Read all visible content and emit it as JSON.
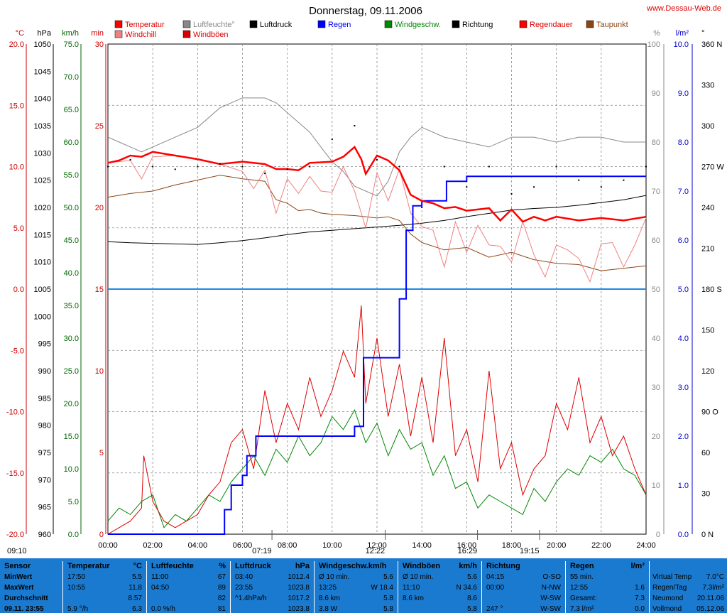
{
  "title": "Donnerstag, 09.11.2006",
  "site": "www.Dessau-Web.de",
  "axes": {
    "celsius": {
      "unit": "°C",
      "ticks": [
        "20.0",
        "15.0",
        "10.0",
        "5.0",
        "0.0",
        "-5.0",
        "-10.0",
        "-15.0",
        "-20.0"
      ],
      "range": [
        -20,
        20
      ],
      "color": "#cc0000"
    },
    "hpa": {
      "unit": "hPa",
      "ticks": [
        "1050",
        "1045",
        "1040",
        "1035",
        "1030",
        "1025",
        "1020",
        "1015",
        "1010",
        "1005",
        "1000",
        "995",
        "990",
        "985",
        "980",
        "975",
        "970",
        "965",
        "960"
      ],
      "range": [
        960,
        1050
      ],
      "color": "#000000"
    },
    "kmh": {
      "unit": "km/h",
      "ticks": [
        "75.0",
        "70.0",
        "65.0",
        "60.0",
        "55.0",
        "50.0",
        "45.0",
        "40.0",
        "35.0",
        "30.0",
        "25.0",
        "20.0",
        "15.0",
        "10.0",
        "5.0",
        "0.0"
      ],
      "range": [
        0,
        75
      ],
      "color": "#006600"
    },
    "min": {
      "unit": "min",
      "ticks": [
        "30",
        "25",
        "20",
        "15",
        "10",
        "5",
        "0"
      ],
      "range": [
        0,
        30
      ],
      "color": "#cc0000"
    },
    "percent": {
      "unit": "%",
      "ticks": [
        "100",
        "90",
        "80",
        "70",
        "60",
        "50",
        "40",
        "30",
        "20",
        "10",
        "0"
      ],
      "range": [
        0,
        100
      ],
      "color": "#888888"
    },
    "lm2": {
      "unit": "l/m²",
      "ticks": [
        "10.0",
        "9.0",
        "8.0",
        "7.0",
        "6.0",
        "5.0",
        "4.0",
        "3.0",
        "2.0",
        "1.0",
        "0.0"
      ],
      "range": [
        0,
        10
      ],
      "color": "#0000cc"
    },
    "deg": {
      "unit": "°",
      "ticks": [
        "360 N",
        "330",
        "300",
        "270 W",
        "240",
        "210",
        "180 S",
        "150",
        "120",
        "90 O",
        "60",
        "30",
        "0 N"
      ],
      "range": [
        0,
        360
      ],
      "color": "#000000"
    },
    "time": {
      "ticks": [
        "00:00",
        "02:00",
        "04:00",
        "06:00",
        "08:00",
        "10:00",
        "12:00",
        "14:00",
        "16:00",
        "18:00",
        "20:00",
        "22:00",
        "24:00"
      ],
      "range": [
        0,
        24
      ]
    }
  },
  "legend": [
    {
      "label": "Temperatur",
      "color": "#ff0000"
    },
    {
      "label": "Windchill",
      "color": "#f08080"
    },
    {
      "label": "Luftfeuchte°",
      "color": "#888888"
    },
    {
      "label": "Windböen",
      "color": "#dd0000"
    },
    {
      "label": "Luftdruck",
      "color": "#000000"
    },
    {
      "label": "Regen",
      "color": "#0000ff"
    },
    {
      "label": "Windgeschw.",
      "color": "#008800"
    },
    {
      "label": "Richtung",
      "color": "#000000"
    },
    {
      "label": "Regendauer",
      "color": "#ff0000"
    },
    {
      "label": "Taupunkt",
      "color": "#8b4513"
    }
  ],
  "sun": {
    "sunrise": "07:19",
    "sunset": "16:29",
    "moon1": "12:22",
    "moon2": "19:15",
    "start": "09:10"
  },
  "chart_data": {
    "type": "line",
    "x_unit": "hour",
    "xlim": [
      0,
      24
    ],
    "reference_line_mm": 5.0,
    "series": [
      {
        "name": "Temperatur",
        "axis": "celsius",
        "x": [
          0,
          0.5,
          1,
          1.5,
          2,
          3,
          4,
          5,
          6,
          7,
          7.5,
          8,
          8.5,
          9,
          10,
          10.5,
          11,
          11.3,
          11.5,
          12,
          12.5,
          13,
          13.5,
          14,
          14.5,
          15,
          15.5,
          16,
          16.5,
          17,
          17.5,
          18,
          18.5,
          19,
          19.5,
          20,
          21,
          22,
          23,
          24
        ],
        "y": [
          10.3,
          10.5,
          10.9,
          10.8,
          11.2,
          10.9,
          10.6,
          10.2,
          10.4,
          10.2,
          9.8,
          9.8,
          9.7,
          10.3,
          10.4,
          10.8,
          11.6,
          10.6,
          9.4,
          10.9,
          10.5,
          9.7,
          7.7,
          7.2,
          7.0,
          6.6,
          6.7,
          6.4,
          6.5,
          6.6,
          5.6,
          6.5,
          5.5,
          5.9,
          5.6,
          5.9,
          5.6,
          5.8,
          5.6,
          5.9
        ]
      },
      {
        "name": "Luftfeuchte°",
        "axis": "percent",
        "x": [
          0,
          0.5,
          1,
          1.5,
          2,
          3,
          4,
          5,
          5.5,
          6,
          6.5,
          7,
          7.5,
          8,
          8.5,
          9,
          9.5,
          10,
          10.5,
          11,
          11.5,
          12,
          12.5,
          13,
          13.5,
          14,
          14.5,
          15,
          16,
          17,
          18,
          19,
          20,
          21,
          22,
          23,
          24
        ],
        "y": [
          81,
          80,
          79,
          78,
          79,
          81,
          83,
          87,
          88,
          89,
          89,
          89,
          88,
          86,
          84,
          82,
          79,
          76,
          74,
          71,
          70,
          69,
          72,
          78,
          81,
          83,
          82,
          81,
          80,
          79,
          81,
          81,
          80,
          81,
          81,
          80,
          80
        ]
      },
      {
        "name": "Luftdruck",
        "axis": "hpa",
        "x": [
          0,
          1,
          2,
          3,
          4,
          5,
          6,
          7,
          8,
          9,
          10,
          11,
          12,
          13,
          14,
          15,
          16,
          17,
          18,
          19,
          20,
          21,
          22,
          23,
          24
        ],
        "y": [
          1013.7,
          1013.5,
          1013.4,
          1013.3,
          1013.2,
          1013.5,
          1013.9,
          1014.4,
          1015.0,
          1015.5,
          1015.8,
          1016.1,
          1016.4,
          1016.7,
          1017.1,
          1017.6,
          1018.3,
          1018.9,
          1019.5,
          1019.8,
          1020.0,
          1020.4,
          1020.9,
          1021.4,
          1022.2
        ]
      },
      {
        "name": "Taupunkt",
        "axis": "celsius",
        "x": [
          0,
          1,
          2,
          3,
          4,
          5,
          6,
          7,
          7.5,
          8,
          8.5,
          9,
          9.5,
          10,
          11,
          12,
          12.5,
          13,
          13.5,
          14,
          15,
          16,
          17,
          18,
          19,
          20,
          21,
          22,
          23,
          24
        ],
        "y": [
          7.5,
          7.8,
          8.0,
          8.5,
          8.9,
          9.3,
          9.0,
          8.8,
          7.3,
          7.0,
          6.4,
          6.5,
          6.2,
          6.1,
          6.0,
          5.8,
          5.9,
          5.6,
          4.5,
          3.8,
          3.2,
          3.4,
          2.6,
          3.0,
          2.4,
          2.1,
          2.0,
          1.5,
          1.7,
          1.9
        ]
      },
      {
        "name": "Regen",
        "axis": "lm2",
        "step": true,
        "x": [
          0,
          4.5,
          5.2,
          5.5,
          6.0,
          6.2,
          6.6,
          7.0,
          8.0,
          9.0,
          10.0,
          11.0,
          11.4,
          12.0,
          13.0,
          13.3,
          13.6,
          14.0,
          15.0,
          15.1,
          16,
          17,
          18,
          19,
          20,
          21,
          22,
          23,
          24
        ],
        "y": [
          0,
          0,
          0.5,
          1.0,
          1.2,
          1.6,
          2.0,
          2.0,
          2.0,
          2.0,
          2.0,
          2.2,
          3.6,
          3.6,
          4.8,
          6.2,
          6.7,
          6.8,
          6.8,
          7.2,
          7.3,
          7.3,
          7.3,
          7.3,
          7.3,
          7.3,
          7.3,
          7.3,
          7.3
        ]
      },
      {
        "name": "Windchill",
        "axis": "celsius",
        "x": [
          0,
          1,
          1.5,
          2,
          3,
          4,
          5,
          6,
          6.5,
          7,
          7.5,
          8,
          8.5,
          9,
          9.5,
          10,
          10.5,
          11,
          11.5,
          12,
          12.5,
          13,
          13.5,
          14,
          14.5,
          15,
          15.5,
          16,
          16.5,
          17,
          17.5,
          18,
          18.5,
          19,
          19.5,
          20,
          20.5,
          21,
          21.5,
          22,
          22.5,
          23,
          23.5,
          24
        ],
        "y": [
          10.3,
          10.5,
          9.0,
          10.8,
          10.9,
          10.6,
          10.2,
          9.6,
          8.2,
          9.7,
          6.2,
          9.0,
          7.8,
          9.2,
          8.0,
          7.9,
          10.0,
          8.0,
          5.0,
          9.5,
          7.2,
          9.8,
          6.2,
          5.1,
          4.8,
          1.8,
          5.5,
          3.0,
          5.2,
          3.6,
          3.5,
          2.2,
          5.5,
          2.8,
          1.0,
          3.6,
          3.2,
          2.5,
          0.6,
          3.7,
          3.8,
          1.8,
          3.6,
          5.8
        ]
      },
      {
        "name": "Windgeschw.",
        "axis": "kmh",
        "x": [
          0,
          0.5,
          1,
          1.5,
          2,
          2.5,
          3,
          3.5,
          4,
          4.5,
          5,
          5.5,
          6,
          6.5,
          7,
          7.5,
          8,
          8.5,
          9,
          9.5,
          10,
          10.5,
          11,
          11.5,
          12,
          12.5,
          13,
          13.5,
          14,
          14.5,
          15,
          15.5,
          16,
          16.5,
          17,
          17.5,
          18,
          18.5,
          19,
          19.5,
          20,
          20.5,
          21,
          21.5,
          22,
          22.5,
          23,
          23.5,
          24
        ],
        "y": [
          2,
          4,
          3,
          5,
          6,
          1,
          3,
          2,
          4,
          6,
          5,
          8,
          10,
          12,
          9,
          13,
          11,
          15,
          12,
          14,
          18,
          16,
          19,
          14,
          17,
          12,
          16,
          13,
          14,
          9,
          12,
          7,
          8,
          4,
          6,
          5,
          4,
          3,
          7,
          5,
          8,
          10,
          9,
          12,
          11,
          13,
          10,
          9,
          6
        ]
      },
      {
        "name": "Windböen",
        "axis": "kmh",
        "x": [
          0,
          0.5,
          1,
          1.5,
          1.6,
          2,
          2.5,
          3,
          3.5,
          4,
          4.5,
          5,
          5.5,
          6,
          6.5,
          7,
          7.5,
          8,
          8.5,
          9,
          9.5,
          10,
          10.5,
          11,
          11.3,
          11.5,
          12,
          12.5,
          13,
          13.5,
          14,
          14.5,
          15,
          15.5,
          16,
          16.5,
          17,
          17.5,
          18,
          18.5,
          19,
          19.5,
          20,
          20.5,
          21,
          21.5,
          22,
          22.5,
          23,
          23.5,
          24
        ],
        "y": [
          0,
          1,
          2,
          4,
          12,
          5,
          2,
          1,
          2,
          3,
          6,
          8,
          14,
          16,
          10,
          22,
          14,
          20,
          16,
          24,
          18,
          22,
          28,
          24,
          35,
          20,
          30,
          18,
          26,
          15,
          24,
          14,
          30,
          12,
          16,
          8,
          25,
          10,
          14,
          6,
          10,
          12,
          20,
          16,
          24,
          14,
          18,
          12,
          15,
          10,
          6
        ]
      },
      {
        "name": "Richtung",
        "axis": "deg",
        "x": [
          0,
          1,
          2,
          3,
          4,
          5,
          6,
          7,
          8,
          9,
          10,
          11,
          12,
          13,
          14,
          15,
          16,
          17,
          18,
          19,
          20,
          21,
          22,
          23,
          24
        ],
        "y": [
          270,
          275,
          270,
          268,
          270,
          272,
          270,
          265,
          268,
          270,
          290,
          300,
          275,
          270,
          240,
          270,
          255,
          270,
          250,
          255,
          270,
          260,
          255,
          260,
          270
        ]
      }
    ]
  },
  "table": {
    "columns": [
      {
        "head_l": "Sensor",
        "head_r": "",
        "rows": [
          [
            "MinWert",
            ""
          ],
          [
            "MaxWert",
            ""
          ],
          [
            "Durchschnitt",
            ""
          ],
          [
            "09.11. 23:55",
            ""
          ]
        ]
      },
      {
        "head_l": "Temperatur",
        "head_r": "°C",
        "rows": [
          [
            "17:50",
            "5.5"
          ],
          [
            "10:55",
            "11.8"
          ],
          [
            "",
            "8.57"
          ],
          [
            "5.9 °/h",
            "6.3"
          ]
        ]
      },
      {
        "head_l": "Luftfeuchte",
        "head_r": "%",
        "rows": [
          [
            "11:00",
            "67"
          ],
          [
            "04:50",
            "89"
          ],
          [
            "",
            "82"
          ],
          [
            "0.0 %/h",
            "81"
          ]
        ]
      },
      {
        "head_l": "Luftdruck",
        "head_r": "hPa",
        "rows": [
          [
            "03:40",
            "1012.4"
          ],
          [
            "23:55",
            "1023.8"
          ],
          [
            "^1.4hPa/h",
            "1017.2"
          ],
          [
            "",
            "1023.8"
          ]
        ]
      },
      {
        "head_l": "Windgeschw.km/h",
        "head_r": "",
        "rows": [
          [
            "Ø 10 min.",
            "5.6"
          ],
          [
            "13:25",
            "W 18.4"
          ],
          [
            "8.6 km",
            "5.8"
          ],
          [
            "3.8 W",
            "5.8"
          ]
        ]
      },
      {
        "head_l": "Windböen",
        "head_r": "km/h",
        "rows": [
          [
            "Ø 10 min.",
            "5.6"
          ],
          [
            "11:10",
            "N 34.6"
          ],
          [
            "8.6 km",
            "8.6"
          ],
          [
            "",
            "5.8"
          ]
        ]
      },
      {
        "head_l": "Richtung",
        "head_r": "",
        "rows": [
          [
            "04:15",
            "O-SO"
          ],
          [
            "00:00",
            "N-NW"
          ],
          [
            "",
            "W-SW"
          ],
          [
            "247 °",
            "W-SW"
          ]
        ]
      },
      {
        "head_l": "Regen",
        "head_r": "l/m²",
        "rows": [
          [
            "55 min.",
            ""
          ],
          [
            "12:55",
            "1.6"
          ],
          [
            "Gesamt:",
            "7.3"
          ],
          [
            "7.3 l/m²",
            "0.0"
          ]
        ]
      },
      {
        "head_l": "",
        "head_r": "",
        "rows": [
          [
            "Virtual Temp",
            "7.0°C"
          ],
          [
            "Regen/Tag",
            "7.3l/m²"
          ],
          [
            "Neumond",
            "20.11.06"
          ],
          [
            "Vollmond",
            "05.12.06"
          ]
        ]
      }
    ]
  }
}
